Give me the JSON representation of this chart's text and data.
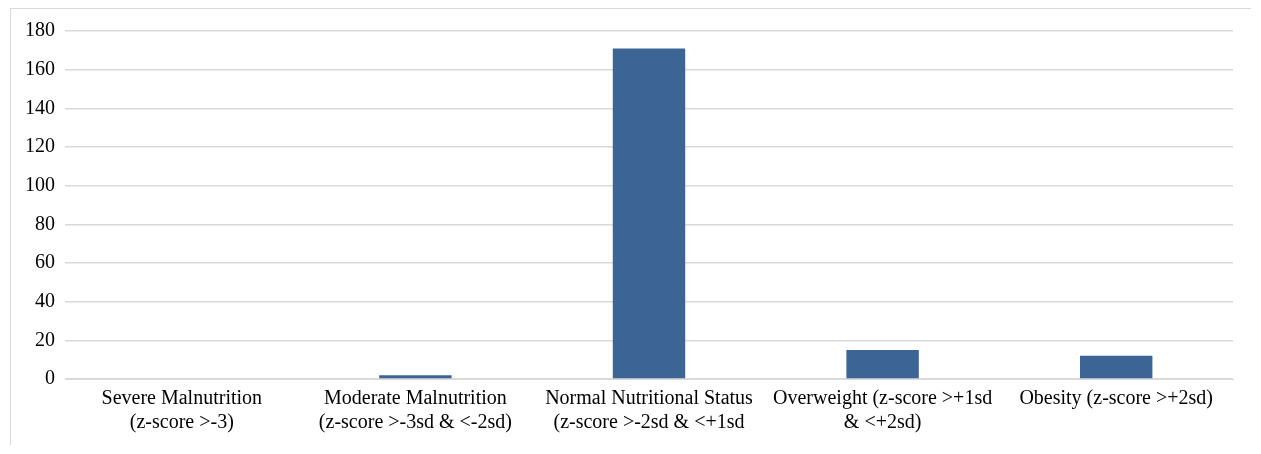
{
  "chart_data": {
    "type": "bar",
    "categories": [
      "Severe Malnutrition (z-score >-3)",
      "Moderate Malnutrition (z-score >-3sd & <-2sd)",
      "Normal Nutritional Status (z-score >-2sd & <+1sd",
      "Overweight (z-score >+1sd & <+2sd)",
      "Obesity (z-score >+2sd)"
    ],
    "values": [
      0,
      2,
      171,
      15,
      12
    ],
    "color": "#3c6494",
    "ylim": [
      0,
      180
    ],
    "yticks": [
      0,
      20,
      40,
      60,
      80,
      100,
      120,
      140,
      160,
      180
    ],
    "grid": "y",
    "legend": false
  }
}
